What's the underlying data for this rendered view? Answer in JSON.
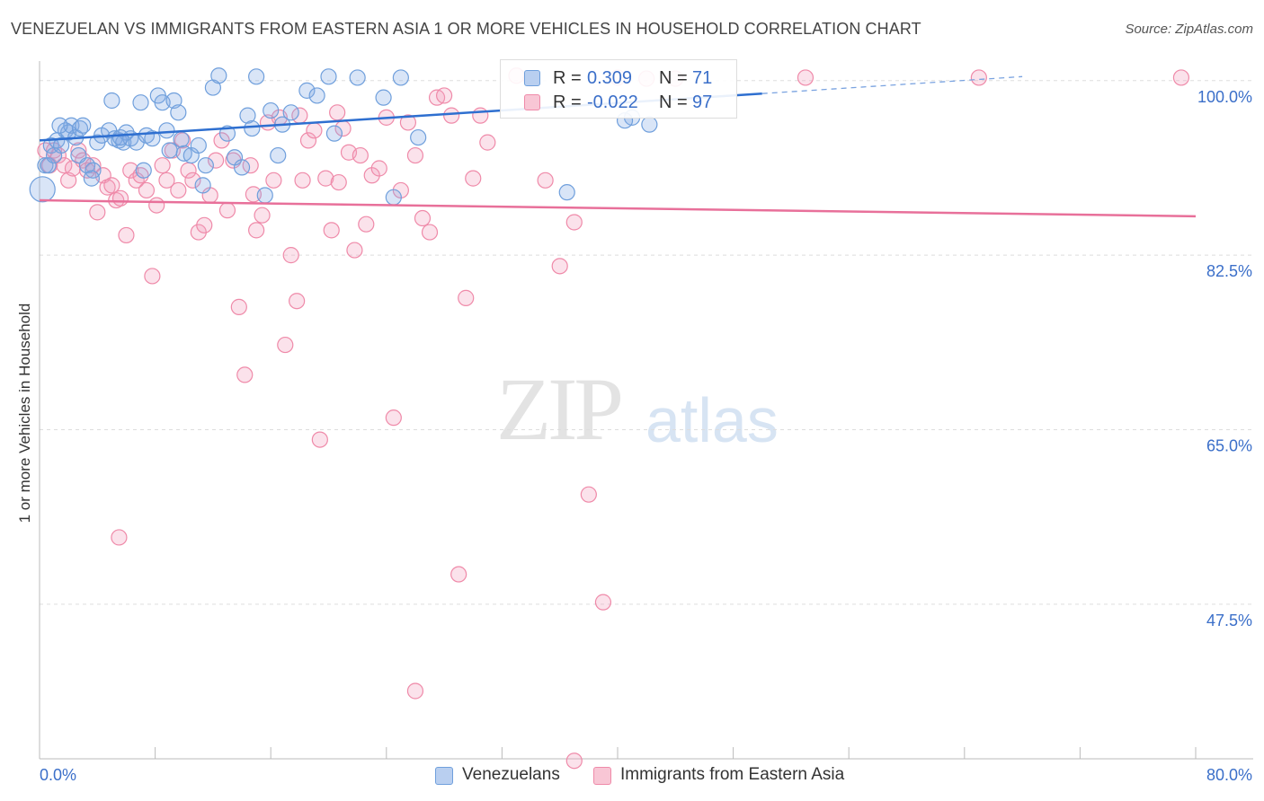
{
  "title": "VENEZUELAN VS IMMIGRANTS FROM EASTERN ASIA 1 OR MORE VEHICLES IN HOUSEHOLD CORRELATION CHART",
  "source": "Source: ZipAtlas.com",
  "watermark": {
    "zip": "ZIP",
    "atlas": "atlas"
  },
  "colors": {
    "blue": "#6f9fdc",
    "blue_line": "#2e6fd0",
    "pink": "#ef8aa9",
    "pink_line": "#e8709a",
    "axis_text": "#3b6fc9"
  },
  "legend_top": {
    "rows": [
      {
        "r_label": "R =",
        "r_value": "0.309",
        "n_label": "N =",
        "n_value": "71"
      },
      {
        "r_label": "R =",
        "r_value": "-0.022",
        "n_label": "N =",
        "n_value": "97"
      }
    ]
  },
  "legend_bottom": [
    "Venezuelans",
    "Immigrants from Eastern Asia"
  ],
  "chart_data": {
    "type": "scatter",
    "xlabel": "",
    "ylabel": "1 or more Vehicles in Household",
    "xlim": [
      0,
      80
    ],
    "ylim": [
      32,
      102.5
    ],
    "x_tick_labels": [
      "0.0%",
      "80.0%"
    ],
    "y_ticks": [
      100.0,
      82.5,
      65.0,
      47.5
    ],
    "y_tick_labels": [
      "100.0%",
      "82.5%",
      "65.0%",
      "47.5%"
    ],
    "series": [
      {
        "name": "Venezuelans",
        "color": "#6f9fdc",
        "trend": {
          "x0": 0,
          "y0": 94.0,
          "x1": 50,
          "y1": 98.7,
          "dash_to_x": 68,
          "dash_to_y": 100.4
        },
        "points": [
          [
            0.2,
            89.1
          ],
          [
            0.4,
            91.5
          ],
          [
            0.6,
            91.5
          ],
          [
            0.8,
            93.5
          ],
          [
            1,
            92.5
          ],
          [
            1.2,
            94
          ],
          [
            1.5,
            93.5
          ],
          [
            1.8,
            95
          ],
          [
            2,
            94.8
          ],
          [
            2.2,
            95.5
          ],
          [
            2.5,
            94.3
          ],
          [
            2.8,
            95.2
          ],
          [
            3,
            95.5
          ],
          [
            3.3,
            91.5
          ],
          [
            3.7,
            91
          ],
          [
            4,
            93.8
          ],
          [
            4.3,
            94.5
          ],
          [
            4.8,
            95
          ],
          [
            5,
            98
          ],
          [
            5.2,
            94.2
          ],
          [
            5.5,
            94
          ],
          [
            5.8,
            93.8
          ],
          [
            6,
            94.8
          ],
          [
            6.3,
            94.2
          ],
          [
            6.7,
            93.8
          ],
          [
            7,
            97.8
          ],
          [
            7.4,
            94.5
          ],
          [
            7.8,
            94.2
          ],
          [
            8.2,
            98.5
          ],
          [
            8.5,
            97.8
          ],
          [
            8.8,
            95
          ],
          [
            9,
            93
          ],
          [
            9.3,
            98
          ],
          [
            9.6,
            96.8
          ],
          [
            10,
            92.7
          ],
          [
            10.5,
            92.5
          ],
          [
            11,
            93.5
          ],
          [
            11.5,
            91.5
          ],
          [
            12,
            99.3
          ],
          [
            12.4,
            100.5
          ],
          [
            13,
            94.7
          ],
          [
            13.5,
            92.3
          ],
          [
            14,
            91.3
          ],
          [
            14.4,
            96.5
          ],
          [
            14.7,
            95.2
          ],
          [
            15,
            100.4
          ],
          [
            15.6,
            88.5
          ],
          [
            16,
            97
          ],
          [
            16.5,
            92.5
          ],
          [
            16.8,
            95.6
          ],
          [
            17.4,
            96.8
          ],
          [
            18.5,
            99
          ],
          [
            19.2,
            98.5
          ],
          [
            20,
            100.4
          ],
          [
            20.4,
            94.7
          ],
          [
            22,
            100.3
          ],
          [
            23.8,
            98.3
          ],
          [
            24.5,
            88.3
          ],
          [
            25,
            100.3
          ],
          [
            26.2,
            94.3
          ],
          [
            36.5,
            88.8
          ],
          [
            41,
            96.3
          ],
          [
            42.2,
            95.6
          ],
          [
            40.5,
            96
          ],
          [
            3.6,
            90.2
          ],
          [
            5.6,
            94.3
          ],
          [
            7.2,
            91
          ],
          [
            9.8,
            94.1
          ],
          [
            11.3,
            89.5
          ],
          [
            2.7,
            92.5
          ],
          [
            1.4,
            95.5
          ]
        ]
      },
      {
        "name": "Immigrants from Eastern Asia",
        "color": "#ef8aa9",
        "trend": {
          "x0": 0,
          "y0": 88.0,
          "x1": 80,
          "y1": 86.4
        },
        "points": [
          [
            0.4,
            93
          ],
          [
            0.7,
            91.5
          ],
          [
            1,
            93
          ],
          [
            1.3,
            92.5
          ],
          [
            1.7,
            91.5
          ],
          [
            2,
            90
          ],
          [
            2.3,
            91.2
          ],
          [
            2.7,
            93
          ],
          [
            3,
            92
          ],
          [
            3.3,
            91
          ],
          [
            3.7,
            91.5
          ],
          [
            4,
            86.8
          ],
          [
            4.4,
            90.5
          ],
          [
            4.7,
            89.3
          ],
          [
            5,
            89.5
          ],
          [
            5.3,
            88
          ],
          [
            5.6,
            88.2
          ],
          [
            6,
            84.5
          ],
          [
            6.3,
            91
          ],
          [
            6.7,
            90
          ],
          [
            7,
            90.5
          ],
          [
            7.4,
            89
          ],
          [
            7.8,
            80.4
          ],
          [
            8.1,
            87.5
          ],
          [
            8.5,
            91.5
          ],
          [
            8.8,
            90
          ],
          [
            9.2,
            93
          ],
          [
            9.6,
            89
          ],
          [
            9.9,
            94
          ],
          [
            10.3,
            91
          ],
          [
            10.6,
            90
          ],
          [
            11,
            84.8
          ],
          [
            11.4,
            85.5
          ],
          [
            11.8,
            88.5
          ],
          [
            12.2,
            92
          ],
          [
            12.6,
            94
          ],
          [
            13,
            87
          ],
          [
            13.4,
            92
          ],
          [
            13.8,
            77.3
          ],
          [
            14.2,
            70.5
          ],
          [
            14.6,
            91.5
          ],
          [
            15,
            85
          ],
          [
            15.4,
            86.5
          ],
          [
            15.8,
            95.8
          ],
          [
            16.2,
            90
          ],
          [
            16.6,
            96.3
          ],
          [
            17,
            73.5
          ],
          [
            17.4,
            82.5
          ],
          [
            17.8,
            77.9
          ],
          [
            18.2,
            90
          ],
          [
            18.6,
            94
          ],
          [
            19,
            95
          ],
          [
            19.4,
            64
          ],
          [
            19.8,
            90.2
          ],
          [
            20.2,
            85
          ],
          [
            20.6,
            96.8
          ],
          [
            21,
            95.2
          ],
          [
            21.4,
            92.8
          ],
          [
            21.8,
            83
          ],
          [
            22.2,
            92.5
          ],
          [
            22.6,
            85.6
          ],
          [
            23,
            90.5
          ],
          [
            23.5,
            91.2
          ],
          [
            24,
            96.3
          ],
          [
            24.5,
            66.2
          ],
          [
            25,
            89
          ],
          [
            25.5,
            95.8
          ],
          [
            26,
            92.5
          ],
          [
            26.5,
            86.2
          ],
          [
            27,
            84.8
          ],
          [
            27.5,
            98.3
          ],
          [
            28,
            98.5
          ],
          [
            28.5,
            96.5
          ],
          [
            29,
            50.5
          ],
          [
            29.5,
            78.2
          ],
          [
            30,
            90.2
          ],
          [
            30.5,
            96.5
          ],
          [
            31,
            93.8
          ],
          [
            33,
            100.5
          ],
          [
            34,
            100.2
          ],
          [
            35,
            90
          ],
          [
            36,
            81.4
          ],
          [
            37,
            85.8
          ],
          [
            38,
            58.5
          ],
          [
            39,
            47.7
          ],
          [
            40,
            100.3
          ],
          [
            42,
            100.2
          ],
          [
            44,
            100.2
          ],
          [
            53,
            100.3
          ],
          [
            65,
            100.3
          ],
          [
            79,
            100.3
          ],
          [
            5.5,
            54.2
          ],
          [
            26,
            38.8
          ],
          [
            37,
            31.8
          ],
          [
            14.8,
            88.6
          ],
          [
            18,
            96.5
          ],
          [
            20.7,
            89.8
          ]
        ]
      }
    ]
  }
}
